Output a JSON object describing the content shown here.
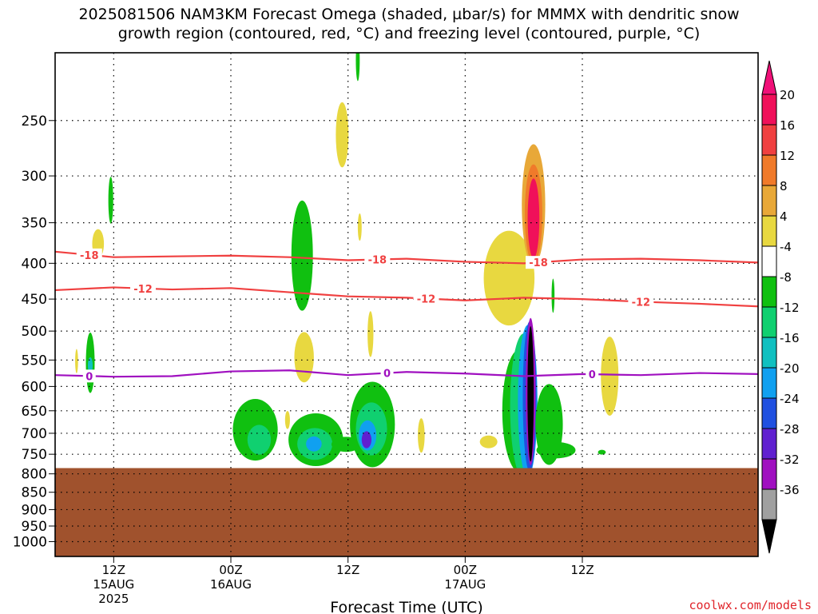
{
  "titles": {
    "line1": "2025081506 NAM3KM Forecast Omega (shaded, µbar/s) for MMMX with dendritic snow",
    "line2": "growth region (contoured, red, °C) and freezing level (contoured, purple, °C)"
  },
  "credit": "coolwx.com/models",
  "chart_data": {
    "type": "heatmap",
    "title": "2025081506 NAM3KM Forecast Omega (shaded, µbar/s) for MMMX with dendritic snow growth region (contoured, red, °C) and freezing level (contoured, purple, °C)",
    "xlabel": "Forecast Time (UTC)",
    "ylabel": "",
    "xlim": [
      "2025-08-15T06Z",
      "2025-08-18T06Z"
    ],
    "ylim": [
      1050,
      200
    ],
    "y_scale": "log-pressure",
    "grid": true,
    "x_ticks": [
      {
        "t": "2025-08-15T12Z",
        "label": "12Z",
        "sub1": "15AUG",
        "sub2": "2025"
      },
      {
        "t": "2025-08-16T00Z",
        "label": "00Z",
        "sub1": "16AUG",
        "sub2": ""
      },
      {
        "t": "2025-08-16T12Z",
        "label": "12Z",
        "sub1": "",
        "sub2": ""
      },
      {
        "t": "2025-08-17T00Z",
        "label": "00Z",
        "sub1": "17AUG",
        "sub2": ""
      },
      {
        "t": "2025-08-17T12Z",
        "label": "12Z",
        "sub1": "",
        "sub2": ""
      }
    ],
    "y_ticks": [
      250,
      300,
      350,
      400,
      450,
      500,
      550,
      600,
      650,
      700,
      750,
      800,
      850,
      900,
      950,
      1000
    ],
    "surface_pressure_hpa": 785,
    "terrain_color": "#a0522d",
    "colorbar": {
      "labels": [
        "20",
        "16",
        "12",
        "8",
        "4",
        "-4",
        "-8",
        "-12",
        "-16",
        "-20",
        "-24",
        "-28",
        "-32",
        "-36"
      ],
      "colors": [
        "#f0105a",
        "#f04040",
        "#f07a2a",
        "#e8a838",
        "#e8d840",
        "#ffffff",
        "#10c010",
        "#10d070",
        "#10c0c0",
        "#10a0f0",
        "#2050e0",
        "#6020d0",
        "#a010c0",
        "#a0a0a0",
        "#000000"
      ],
      "top_arrow_color": "#f01078",
      "bottom_arrow_color": "#000000"
    },
    "series": [
      {
        "name": "-18",
        "color": "#f04040",
        "x_hours": [
          0,
          6,
          12,
          18,
          24,
          30,
          36,
          42,
          48,
          54,
          60,
          66,
          72
        ],
        "y_hpa": [
          385,
          392,
          391,
          390,
          392,
          396,
          394,
          398,
          400,
          395,
          394,
          396,
          399
        ],
        "labels": [
          {
            "x_hour": 3.5,
            "text": "-18"
          },
          {
            "x_hour": 33,
            "text": "-18"
          },
          {
            "x_hour": 49.5,
            "text": "-18"
          }
        ]
      },
      {
        "name": "-12",
        "color": "#f04040",
        "x_hours": [
          0,
          6,
          12,
          18,
          24,
          30,
          36,
          42,
          48,
          54,
          60,
          66,
          72
        ],
        "y_hpa": [
          437,
          433,
          436,
          434,
          440,
          446,
          448,
          452,
          448,
          450,
          454,
          457,
          461
        ],
        "labels": [
          {
            "x_hour": 9,
            "text": "-12"
          },
          {
            "x_hour": 38,
            "text": "-12"
          },
          {
            "x_hour": 60,
            "text": "-12"
          }
        ]
      },
      {
        "name": "0",
        "color": "#a010c0",
        "x_hours": [
          0,
          6,
          12,
          18,
          24,
          30,
          36,
          42,
          48,
          54,
          60,
          66,
          72
        ],
        "y_hpa": [
          578,
          581,
          580,
          571,
          569,
          578,
          572,
          575,
          580,
          576,
          578,
          574,
          576
        ],
        "labels": [
          {
            "x_hour": 3.5,
            "text": "0"
          },
          {
            "x_hour": 34,
            "text": "0"
          },
          {
            "x_hour": 55,
            "text": "0"
          }
        ]
      }
    ],
    "omega_regions": [
      {
        "cx_hour": 4.4,
        "cy_hpa": 375,
        "rx_hour": 0.6,
        "ry_hpa": 18,
        "value": 6
      },
      {
        "cx_hour": 5.7,
        "cy_hpa": 325,
        "rx_hour": 0.25,
        "ry_hpa": 25,
        "value": -6
      },
      {
        "cx_hour": 2.2,
        "cy_hpa": 552,
        "rx_hour": 0.15,
        "ry_hpa": 22,
        "value": 5
      },
      {
        "cx_hour": 3.6,
        "cy_hpa": 555,
        "rx_hour": 0.45,
        "ry_hpa": 55,
        "value": -6
      },
      {
        "cx_hour": 3.6,
        "cy_hpa": 560,
        "rx_hour": 0.25,
        "ry_hpa": 15,
        "value": -12
      },
      {
        "cx_hour": 20.5,
        "cy_hpa": 692,
        "rx_hour": 2.3,
        "ry_hpa": 70,
        "value": -6
      },
      {
        "cx_hour": 20.9,
        "cy_hpa": 715,
        "rx_hour": 1.2,
        "ry_hpa": 35,
        "value": -10
      },
      {
        "cx_hour": 25.3,
        "cy_hpa": 390,
        "rx_hour": 1.1,
        "ry_hpa": 70,
        "value": -6
      },
      {
        "cx_hour": 25.5,
        "cy_hpa": 545,
        "rx_hour": 1.0,
        "ry_hpa": 45,
        "value": 6
      },
      {
        "cx_hour": 23.8,
        "cy_hpa": 670,
        "rx_hour": 0.25,
        "ry_hpa": 20,
        "value": 5
      },
      {
        "cx_hour": 26.7,
        "cy_hpa": 715,
        "rx_hour": 2.8,
        "ry_hpa": 62,
        "value": -6
      },
      {
        "cx_hour": 26.6,
        "cy_hpa": 725,
        "rx_hour": 1.8,
        "ry_hpa": 38,
        "value": -10
      },
      {
        "cx_hour": 26.5,
        "cy_hpa": 725,
        "rx_hour": 0.8,
        "ry_hpa": 18,
        "value": -16
      },
      {
        "cx_hour": 29.8,
        "cy_hpa": 726,
        "rx_hour": 1.5,
        "ry_hpa": 18,
        "value": -6
      },
      {
        "cx_hour": 29.4,
        "cy_hpa": 262,
        "rx_hour": 0.65,
        "ry_hpa": 28,
        "value": 6
      },
      {
        "cx_hour": 31.0,
        "cy_hpa": 205,
        "rx_hour": 0.2,
        "ry_hpa": 14,
        "value": -6
      },
      {
        "cx_hour": 31.2,
        "cy_hpa": 355,
        "rx_hour": 0.2,
        "ry_hpa": 16,
        "value": 5
      },
      {
        "cx_hour": 32.3,
        "cy_hpa": 505,
        "rx_hour": 0.3,
        "ry_hpa": 38,
        "value": 5
      },
      {
        "cx_hour": 32.5,
        "cy_hpa": 680,
        "rx_hour": 2.3,
        "ry_hpa": 95,
        "value": -6
      },
      {
        "cx_hour": 32.4,
        "cy_hpa": 690,
        "rx_hour": 1.6,
        "ry_hpa": 60,
        "value": -10
      },
      {
        "cx_hour": 32.0,
        "cy_hpa": 705,
        "rx_hour": 0.9,
        "ry_hpa": 35,
        "value": -16
      },
      {
        "cx_hour": 31.9,
        "cy_hpa": 715,
        "rx_hour": 0.5,
        "ry_hpa": 20,
        "value": -24
      },
      {
        "cx_hour": 37.5,
        "cy_hpa": 705,
        "rx_hour": 0.35,
        "ry_hpa": 40,
        "value": 5
      },
      {
        "cx_hour": 44.4,
        "cy_hpa": 720,
        "rx_hour": 0.9,
        "ry_hpa": 15,
        "value": 6
      },
      {
        "cx_hour": 46.5,
        "cy_hpa": 420,
        "rx_hour": 2.6,
        "ry_hpa": 65,
        "value": 5
      },
      {
        "cx_hour": 49.0,
        "cy_hpa": 330,
        "rx_hour": 1.2,
        "ry_hpa": 65,
        "value": 10
      },
      {
        "cx_hour": 49.0,
        "cy_hpa": 340,
        "rx_hour": 0.9,
        "ry_hpa": 55,
        "value": 15
      },
      {
        "cx_hour": 49.0,
        "cy_hpa": 345,
        "rx_hour": 0.6,
        "ry_hpa": 45,
        "value": 21
      },
      {
        "cx_hour": 47.6,
        "cy_hpa": 650,
        "rx_hour": 1.8,
        "ry_hpa": 130,
        "value": -6
      },
      {
        "cx_hour": 48.0,
        "cy_hpa": 640,
        "rx_hour": 1.4,
        "ry_hpa": 150,
        "value": -10
      },
      {
        "cx_hour": 48.4,
        "cy_hpa": 630,
        "rx_hour": 1.0,
        "ry_hpa": 155,
        "value": -16
      },
      {
        "cx_hour": 48.6,
        "cy_hpa": 620,
        "rx_hour": 0.7,
        "ry_hpa": 150,
        "value": -22
      },
      {
        "cx_hour": 48.7,
        "cy_hpa": 610,
        "rx_hour": 0.5,
        "ry_hpa": 145,
        "value": -30
      },
      {
        "cx_hour": 48.7,
        "cy_hpa": 615,
        "rx_hour": 0.32,
        "ry_hpa": 135,
        "value": -40
      },
      {
        "cx_hour": 50.6,
        "cy_hpa": 680,
        "rx_hour": 1.4,
        "ry_hpa": 90,
        "value": -6
      },
      {
        "cx_hour": 51.3,
        "cy_hpa": 740,
        "rx_hour": 2.0,
        "ry_hpa": 20,
        "value": -6
      },
      {
        "cx_hour": 51.0,
        "cy_hpa": 445,
        "rx_hour": 0.15,
        "ry_hpa": 25,
        "value": -6
      },
      {
        "cx_hour": 56.0,
        "cy_hpa": 745,
        "rx_hour": 0.4,
        "ry_hpa": 6,
        "value": -6
      },
      {
        "cx_hour": 56.8,
        "cy_hpa": 580,
        "rx_hour": 0.9,
        "ry_hpa": 75,
        "value": 5
      }
    ]
  }
}
